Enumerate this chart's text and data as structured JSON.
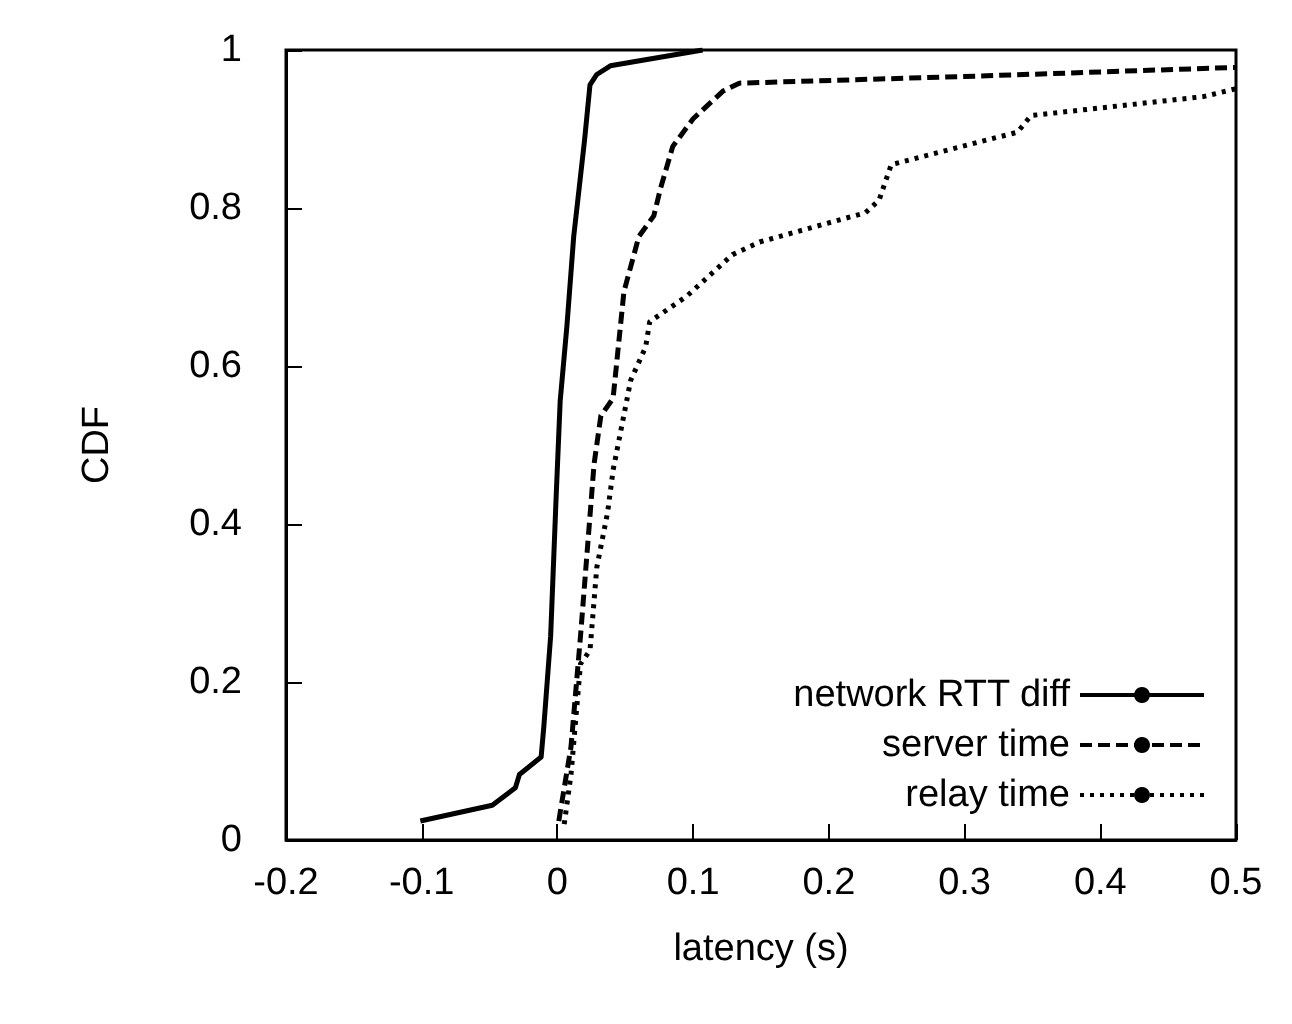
{
  "chart_data": {
    "type": "line",
    "xlabel": "latency (s)",
    "ylabel": "CDF",
    "xlim": [
      -0.2,
      0.5
    ],
    "xticks": [
      -0.2,
      -0.1,
      0,
      0.1,
      0.2,
      0.3,
      0.4,
      0.5
    ],
    "ylim": [
      0,
      1
    ],
    "yticks": [
      0,
      0.2,
      0.4,
      0.6,
      0.8,
      1
    ],
    "grid": false,
    "legend": "bottom right",
    "marker": "none",
    "series": [
      {
        "name": "network RTT diff",
        "color": "#000000",
        "line_style": "solid",
        "x": [
          -0.101,
          -0.048,
          -0.031,
          -0.028,
          -0.012,
          -0.01,
          -0.005,
          -0.001,
          0.002,
          0.007,
          0.012,
          0.016,
          0.02,
          0.024,
          0.029,
          0.039,
          0.107
        ],
        "values": [
          0.024,
          0.044,
          0.066,
          0.083,
          0.105,
          0.144,
          0.258,
          0.432,
          0.555,
          0.651,
          0.764,
          0.825,
          0.886,
          0.956,
          0.969,
          0.98,
          1.0
        ]
      },
      {
        "name": "server time",
        "color": "#000000",
        "line_style": "dashed",
        "x": [
          0.001,
          0.01,
          0.017,
          0.027,
          0.032,
          0.041,
          0.049,
          0.06,
          0.071,
          0.076,
          0.085,
          0.1,
          0.122,
          0.134,
          0.31,
          0.5
        ],
        "values": [
          0.024,
          0.118,
          0.258,
          0.476,
          0.537,
          0.559,
          0.694,
          0.764,
          0.79,
          0.825,
          0.878,
          0.913,
          0.948,
          0.958,
          0.967,
          0.978
        ]
      },
      {
        "name": "relay time",
        "color": "#000000",
        "line_style": "dotted",
        "x": [
          0.005,
          0.01,
          0.017,
          0.024,
          0.029,
          0.037,
          0.041,
          0.054,
          0.065,
          0.068,
          0.095,
          0.129,
          0.149,
          0.227,
          0.237,
          0.246,
          0.339,
          0.349,
          0.476,
          0.5
        ],
        "values": [
          0.02,
          0.083,
          0.223,
          0.24,
          0.345,
          0.415,
          0.468,
          0.582,
          0.624,
          0.656,
          0.688,
          0.741,
          0.757,
          0.794,
          0.81,
          0.855,
          0.896,
          0.917,
          0.941,
          0.951
        ]
      }
    ]
  }
}
